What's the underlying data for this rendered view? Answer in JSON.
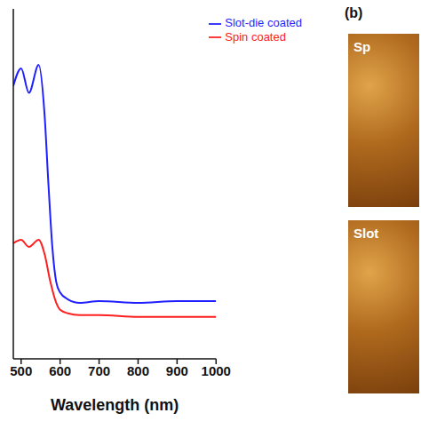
{
  "chart_data": {
    "type": "line",
    "x_label": "Wavelength (nm)",
    "xlim": [
      480,
      1000
    ],
    "xticks": [
      500,
      600,
      700,
      800,
      900,
      1000
    ],
    "ylim": [
      0,
      1
    ],
    "tick_labels": "x",
    "legend": "upper right",
    "series": [
      {
        "name": "Spin coated",
        "color": "#ff2020",
        "x": [
          480,
          500,
          520,
          545,
          560,
          575,
          590,
          600,
          620,
          650,
          700,
          800,
          900,
          1000
        ],
        "values": [
          0.33,
          0.34,
          0.32,
          0.34,
          0.3,
          0.22,
          0.16,
          0.14,
          0.13,
          0.125,
          0.125,
          0.12,
          0.12,
          0.12
        ]
      },
      {
        "name": "Slot-die coated",
        "color": "#1f1fff",
        "x": [
          480,
          500,
          520,
          545,
          560,
          570,
          580,
          590,
          600,
          620,
          650,
          700,
          800,
          900,
          1000
        ],
        "values": [
          0.78,
          0.83,
          0.76,
          0.84,
          0.7,
          0.5,
          0.32,
          0.22,
          0.19,
          0.17,
          0.16,
          0.165,
          0.16,
          0.165,
          0.165
        ]
      }
    ]
  },
  "panel_b": {
    "label": "(b)",
    "images": [
      "Sp",
      "Slot"
    ]
  }
}
